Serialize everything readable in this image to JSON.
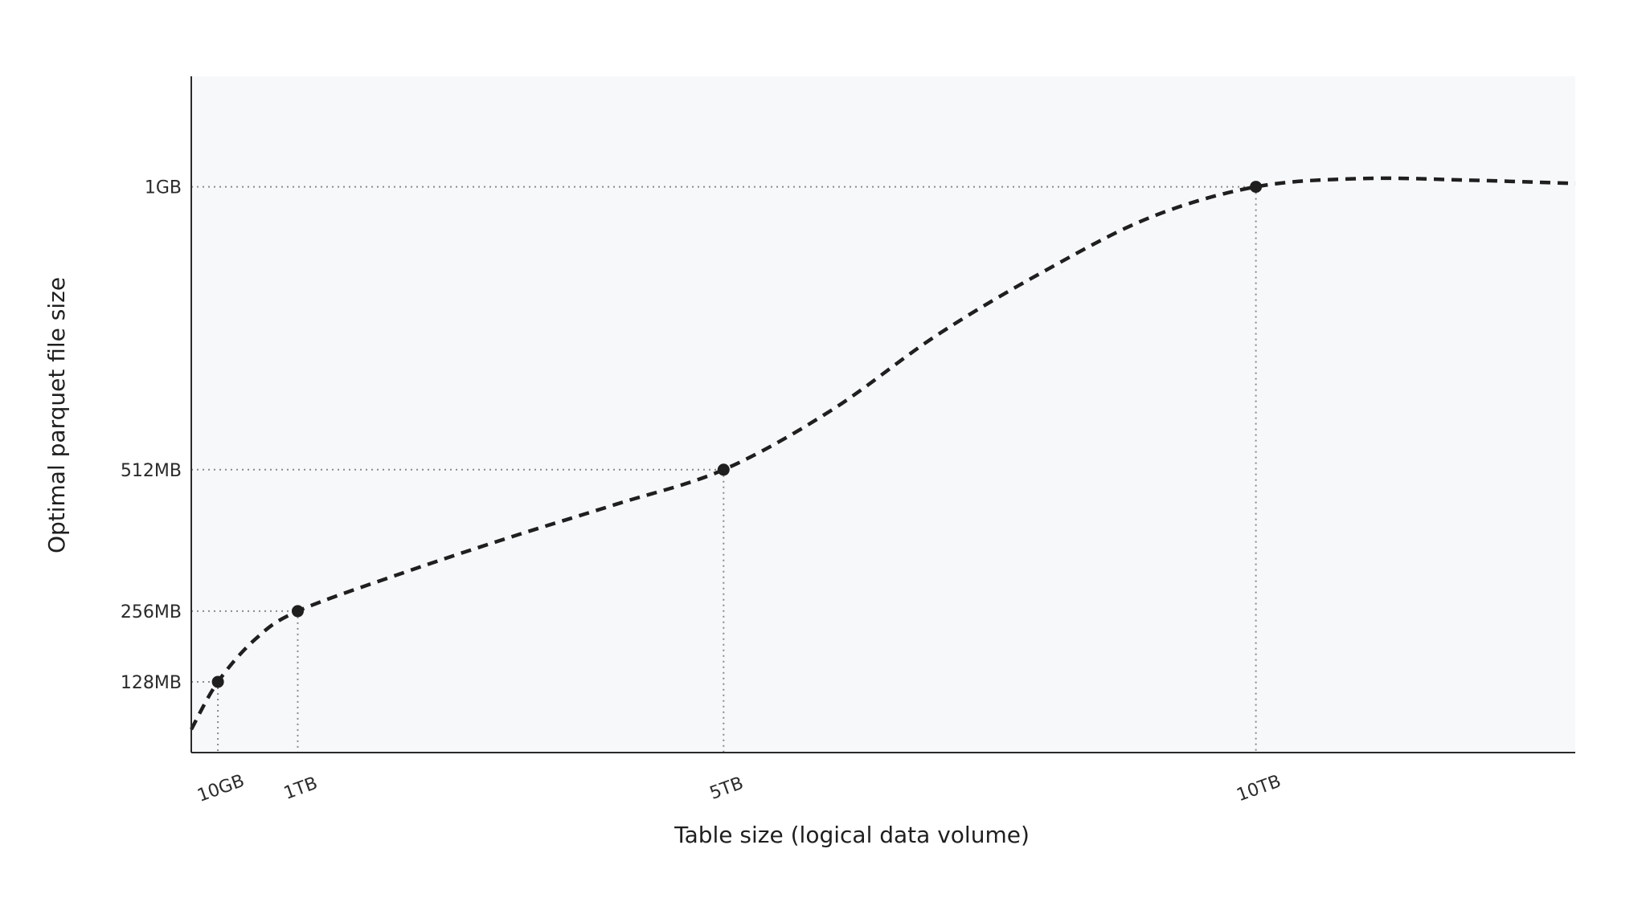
{
  "chart_data": {
    "type": "line",
    "xlabel": "Table size (logical data volume)",
    "ylabel": "Optimal parquet file size",
    "x_ticks": [
      {
        "label": "10GB",
        "value": 0.25
      },
      {
        "label": "1TB",
        "value": 1
      },
      {
        "label": "5TB",
        "value": 5
      },
      {
        "label": "10TB",
        "value": 10
      }
    ],
    "y_ticks": [
      {
        "label": "128MB",
        "value": 128
      },
      {
        "label": "256MB",
        "value": 256
      },
      {
        "label": "512MB",
        "value": 512
      },
      {
        "label": "1GB",
        "value": 1024
      }
    ],
    "xlim": [
      0,
      13
    ],
    "ylim": [
      0,
      1224
    ],
    "series": [
      {
        "line_style": "dashed",
        "color": "#1f1f1f",
        "curve": [
          [
            0,
            42
          ],
          [
            0.25,
            128
          ],
          [
            0.6,
            205
          ],
          [
            1,
            256
          ],
          [
            2,
            326
          ],
          [
            3,
            390
          ],
          [
            4,
            450
          ],
          [
            5,
            512
          ],
          [
            6,
            618
          ],
          [
            7,
            755
          ],
          [
            8,
            870
          ],
          [
            9,
            968
          ],
          [
            10,
            1024
          ],
          [
            11,
            1039
          ],
          [
            12,
            1036
          ],
          [
            13,
            1030
          ]
        ],
        "points": [
          {
            "x": 0.25,
            "y": 128
          },
          {
            "x": 1,
            "y": 256
          },
          {
            "x": 5,
            "y": 512
          },
          {
            "x": 10,
            "y": 1024
          }
        ]
      }
    ],
    "plot_background": "#f7f8fa",
    "guide_color": "#8a8a8a",
    "axis_color": "#2b2b2b"
  }
}
